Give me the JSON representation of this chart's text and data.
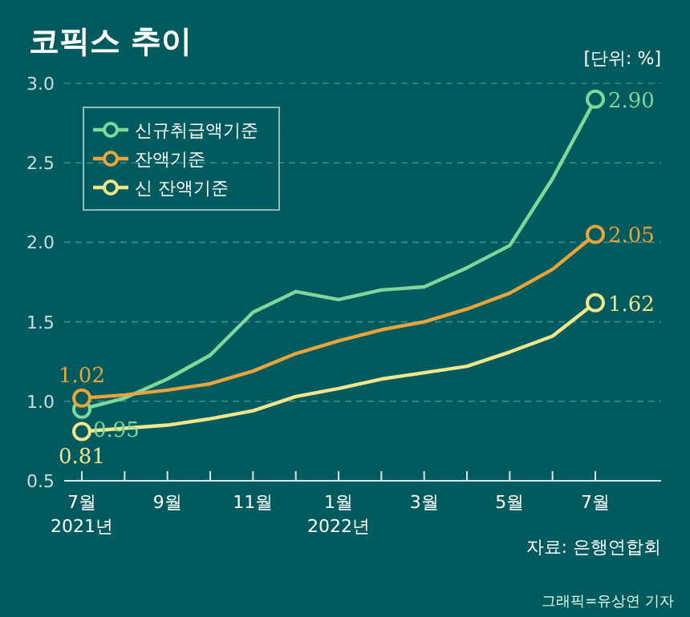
{
  "chart_data": {
    "type": "line",
    "title": "코픽스 추이",
    "categories": [
      "7월\n2021년",
      null,
      "9월",
      null,
      "11월",
      null,
      "1월\n2022년",
      null,
      "3월",
      null,
      "5월",
      null,
      "7월"
    ],
    "series": [
      {
        "name": "신규취급액기준",
        "color": "#7fd89b",
        "values": [
          0.95,
          1.02,
          1.14,
          1.29,
          1.56,
          1.69,
          1.64,
          1.7,
          1.72,
          1.84,
          1.98,
          2.4,
          2.9
        ]
      },
      {
        "name": "잔액기준",
        "color": "#e9a43c",
        "values": [
          1.02,
          1.04,
          1.07,
          1.11,
          1.19,
          1.3,
          1.38,
          1.45,
          1.5,
          1.58,
          1.68,
          1.83,
          2.05
        ]
      },
      {
        "name": "신 잔액기준",
        "color": "#f2e68c",
        "values": [
          0.81,
          0.83,
          0.85,
          0.89,
          0.94,
          1.03,
          1.08,
          1.14,
          1.18,
          1.22,
          1.31,
          1.41,
          1.62
        ]
      }
    ],
    "ylim": [
      0.5,
      3.0
    ],
    "yticks": [
      {
        "value": 0.5,
        "label": "0.5"
      },
      {
        "value": 1.0,
        "label": "1.0"
      },
      {
        "value": 1.5,
        "label": "1.5"
      },
      {
        "value": 2.0,
        "label": "2.0"
      },
      {
        "value": 2.5,
        "label": "2.5"
      },
      {
        "value": 3.0,
        "label": "3.0"
      }
    ],
    "grid": "y",
    "legend": "top left",
    "line_style": "solid",
    "annotations": [
      "[단위: %]",
      "자료: 은행연합회",
      "그래픽=유상연 기자",
      {
        "text": "0.95",
        "x": "7월\n2021년",
        "y": 0.95
      },
      {
        "text": "1.02",
        "x": "7월\n2021년",
        "y": 1.02
      },
      {
        "text": "0.81",
        "x": "7월\n2021년",
        "y": 0.81
      },
      {
        "text": "2.90",
        "x": "7월",
        "y": 2.9
      },
      {
        "text": "2.05",
        "x": "7월",
        "y": 2.05
      },
      {
        "text": "1.62",
        "x": "7월",
        "y": 1.62
      }
    ]
  }
}
